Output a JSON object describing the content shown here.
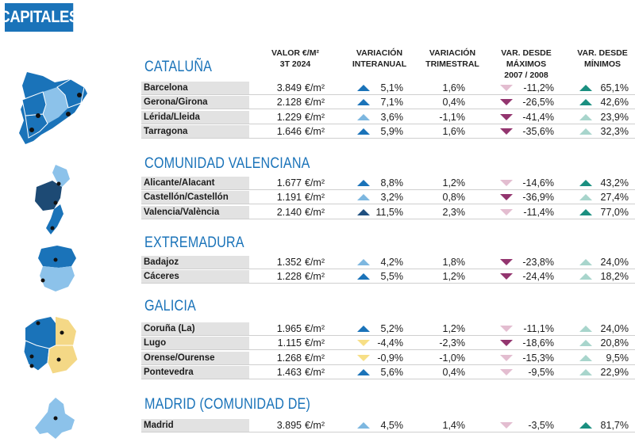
{
  "page_title": "CAPITALES",
  "headers": {
    "valor": [
      "VALOR €/M²",
      "3T 2024"
    ],
    "interanual": [
      "VARIACIÓN",
      "INTERANUAL"
    ],
    "trimestral": [
      "VARIACIÓN",
      "TRIMESTRAL"
    ],
    "maximos": [
      "VAR. DESDE MÁXIMOS",
      "2007 / 2008"
    ],
    "minimos": [
      "VAR. DESDE",
      "MÍNIMOS"
    ]
  },
  "unit": "€/m²",
  "colors": {
    "up_dark": "#1f4f7f",
    "up_mid": "#1a73b9",
    "up_light": "#7db7e0",
    "down_yellow": "#f7df86",
    "down_dark": "#93356f",
    "down_light": "#e3bdd0",
    "min_dark": "#1a8f80",
    "min_light": "#a8d5cc",
    "map_dark": "#1a73b9",
    "map_light": "#8cc2ea",
    "map_navy": "#1d4a74",
    "map_yellow": "#f4d886"
  },
  "regions": [
    {
      "name": "CATALUÑA",
      "rows": [
        {
          "city": "Barcelona",
          "valor": "3.849",
          "interanual": "5,1%",
          "ia_arrow": "up",
          "ia_color": "up_mid",
          "trimestral": "1,6%",
          "maximos": "-11,2%",
          "mx_color": "down_light",
          "minimos": "65,1%",
          "mn_color": "min_dark"
        },
        {
          "city": "Gerona/Girona",
          "valor": "2.128",
          "interanual": "7,1%",
          "ia_arrow": "up",
          "ia_color": "up_mid",
          "trimestral": "0,4%",
          "maximos": "-26,5%",
          "mx_color": "down_dark",
          "minimos": "42,6%",
          "mn_color": "min_dark"
        },
        {
          "city": "Lérida/Lleida",
          "valor": "1.229",
          "interanual": "3,6%",
          "ia_arrow": "up",
          "ia_color": "up_light",
          "trimestral": "-1,1%",
          "maximos": "-41,4%",
          "mx_color": "down_dark",
          "minimos": "23,9%",
          "mn_color": "min_light"
        },
        {
          "city": "Tarragona",
          "valor": "1.646",
          "interanual": "5,9%",
          "ia_arrow": "up",
          "ia_color": "up_mid",
          "trimestral": "1,6%",
          "maximos": "-35,6%",
          "mx_color": "down_dark",
          "minimos": "32,3%",
          "mn_color": "min_light"
        }
      ]
    },
    {
      "name": "COMUNIDAD VALENCIANA",
      "rows": [
        {
          "city": "Alicante/Alacant",
          "valor": "1.677",
          "interanual": "8,8%",
          "ia_arrow": "up",
          "ia_color": "up_mid",
          "trimestral": "1,2%",
          "maximos": "-14,6%",
          "mx_color": "down_light",
          "minimos": "43,2%",
          "mn_color": "min_dark"
        },
        {
          "city": "Castellón/Castellón",
          "valor": "1.191",
          "interanual": "3,2%",
          "ia_arrow": "up",
          "ia_color": "up_light",
          "trimestral": "0,8%",
          "maximos": "-36,9%",
          "mx_color": "down_dark",
          "minimos": "27,4%",
          "mn_color": "min_light"
        },
        {
          "city": "Valencia/València",
          "valor": "2.140",
          "interanual": "11,5%",
          "ia_arrow": "up",
          "ia_color": "up_dark",
          "trimestral": "2,3%",
          "maximos": "-11,4%",
          "mx_color": "down_light",
          "minimos": "77,0%",
          "mn_color": "min_dark"
        }
      ]
    },
    {
      "name": "EXTREMADURA",
      "rows": [
        {
          "city": "Badajoz",
          "valor": "1.352",
          "interanual": "4,2%",
          "ia_arrow": "up",
          "ia_color": "up_light",
          "trimestral": "1,8%",
          "maximos": "-23,8%",
          "mx_color": "down_dark",
          "minimos": "24,0%",
          "mn_color": "min_light"
        },
        {
          "city": "Cáceres",
          "valor": "1.228",
          "interanual": "5,5%",
          "ia_arrow": "up",
          "ia_color": "up_mid",
          "trimestral": "1,2%",
          "maximos": "-24,4%",
          "mx_color": "down_dark",
          "minimos": "18,2%",
          "mn_color": "min_light"
        }
      ]
    },
    {
      "name": "GALICIA",
      "rows": [
        {
          "city": "Coruña (La)",
          "valor": "1.965",
          "interanual": "5,2%",
          "ia_arrow": "up",
          "ia_color": "up_mid",
          "trimestral": "1,2%",
          "maximos": "-11,1%",
          "mx_color": "down_light",
          "minimos": "24,0%",
          "mn_color": "min_light"
        },
        {
          "city": "Lugo",
          "valor": "1.115",
          "interanual": "-4,4%",
          "ia_arrow": "down",
          "ia_color": "down_yellow",
          "trimestral": "-2,3%",
          "maximos": "-18,6%",
          "mx_color": "down_dark",
          "minimos": "20,8%",
          "mn_color": "min_light"
        },
        {
          "city": "Orense/Ourense",
          "valor": "1.268",
          "interanual": "-0,9%",
          "ia_arrow": "down",
          "ia_color": "down_yellow",
          "trimestral": "-1,0%",
          "maximos": "-15,3%",
          "mx_color": "down_light",
          "minimos": "9,5%",
          "mn_color": "min_light"
        },
        {
          "city": "Pontevedra",
          "valor": "1.463",
          "interanual": "5,6%",
          "ia_arrow": "up",
          "ia_color": "up_mid",
          "trimestral": "0,4%",
          "maximos": "-9,5%",
          "mx_color": "down_light",
          "minimos": "22,9%",
          "mn_color": "min_light"
        }
      ]
    },
    {
      "name": "MADRID (COMUNIDAD DE)",
      "rows": [
        {
          "city": "Madrid",
          "valor": "3.895",
          "interanual": "4,5%",
          "ia_arrow": "up",
          "ia_color": "up_light",
          "trimestral": "1,4%",
          "maximos": "-3,5%",
          "mx_color": "down_light",
          "minimos": "81,7%",
          "mn_color": "min_dark"
        }
      ]
    }
  ]
}
